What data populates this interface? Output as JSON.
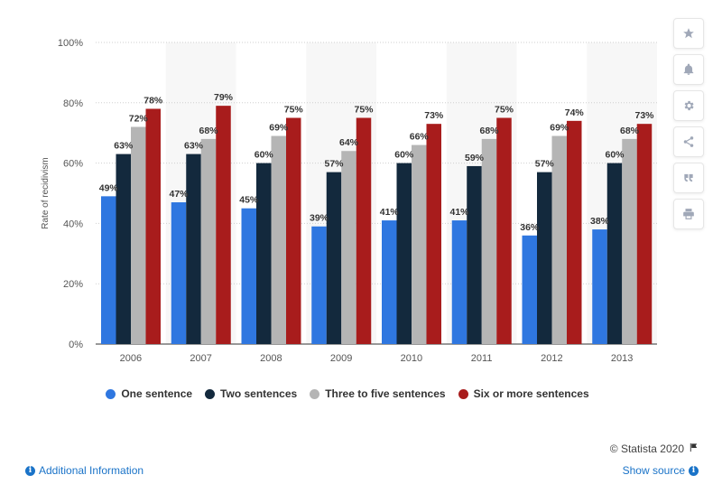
{
  "chart_data": {
    "type": "bar",
    "categories": [
      "2006",
      "2007",
      "2008",
      "2009",
      "2010",
      "2011",
      "2012",
      "2013"
    ],
    "series": [
      {
        "name": "One sentence",
        "color": "#2f77e0",
        "values": [
          49,
          47,
          45,
          39,
          41,
          41,
          36,
          38
        ]
      },
      {
        "name": "Two sentences",
        "color": "#13293d",
        "values": [
          63,
          63,
          60,
          57,
          60,
          59,
          57,
          60
        ]
      },
      {
        "name": "Three to five sentences",
        "color": "#b5b5b5",
        "values": [
          72,
          68,
          69,
          64,
          66,
          68,
          69,
          68
        ]
      },
      {
        "name": "Six or more sentences",
        "color": "#a81c1c",
        "values": [
          78,
          79,
          75,
          75,
          73,
          75,
          74,
          73
        ]
      }
    ],
    "ylabel": "Rate of recidivism",
    "ylim": [
      0,
      100
    ],
    "yticks": [
      "0%",
      "20%",
      "40%",
      "60%",
      "80%",
      "100%"
    ],
    "value_suffix": "%",
    "grid": true,
    "legend_position": "bottom"
  },
  "sidebar": {
    "icons": [
      "star-icon",
      "bell-icon",
      "gear-icon",
      "share-icon",
      "quote-icon",
      "print-icon"
    ]
  },
  "footer": {
    "credit": "© Statista 2020",
    "additional_info": "Additional Information",
    "show_source": "Show source"
  }
}
